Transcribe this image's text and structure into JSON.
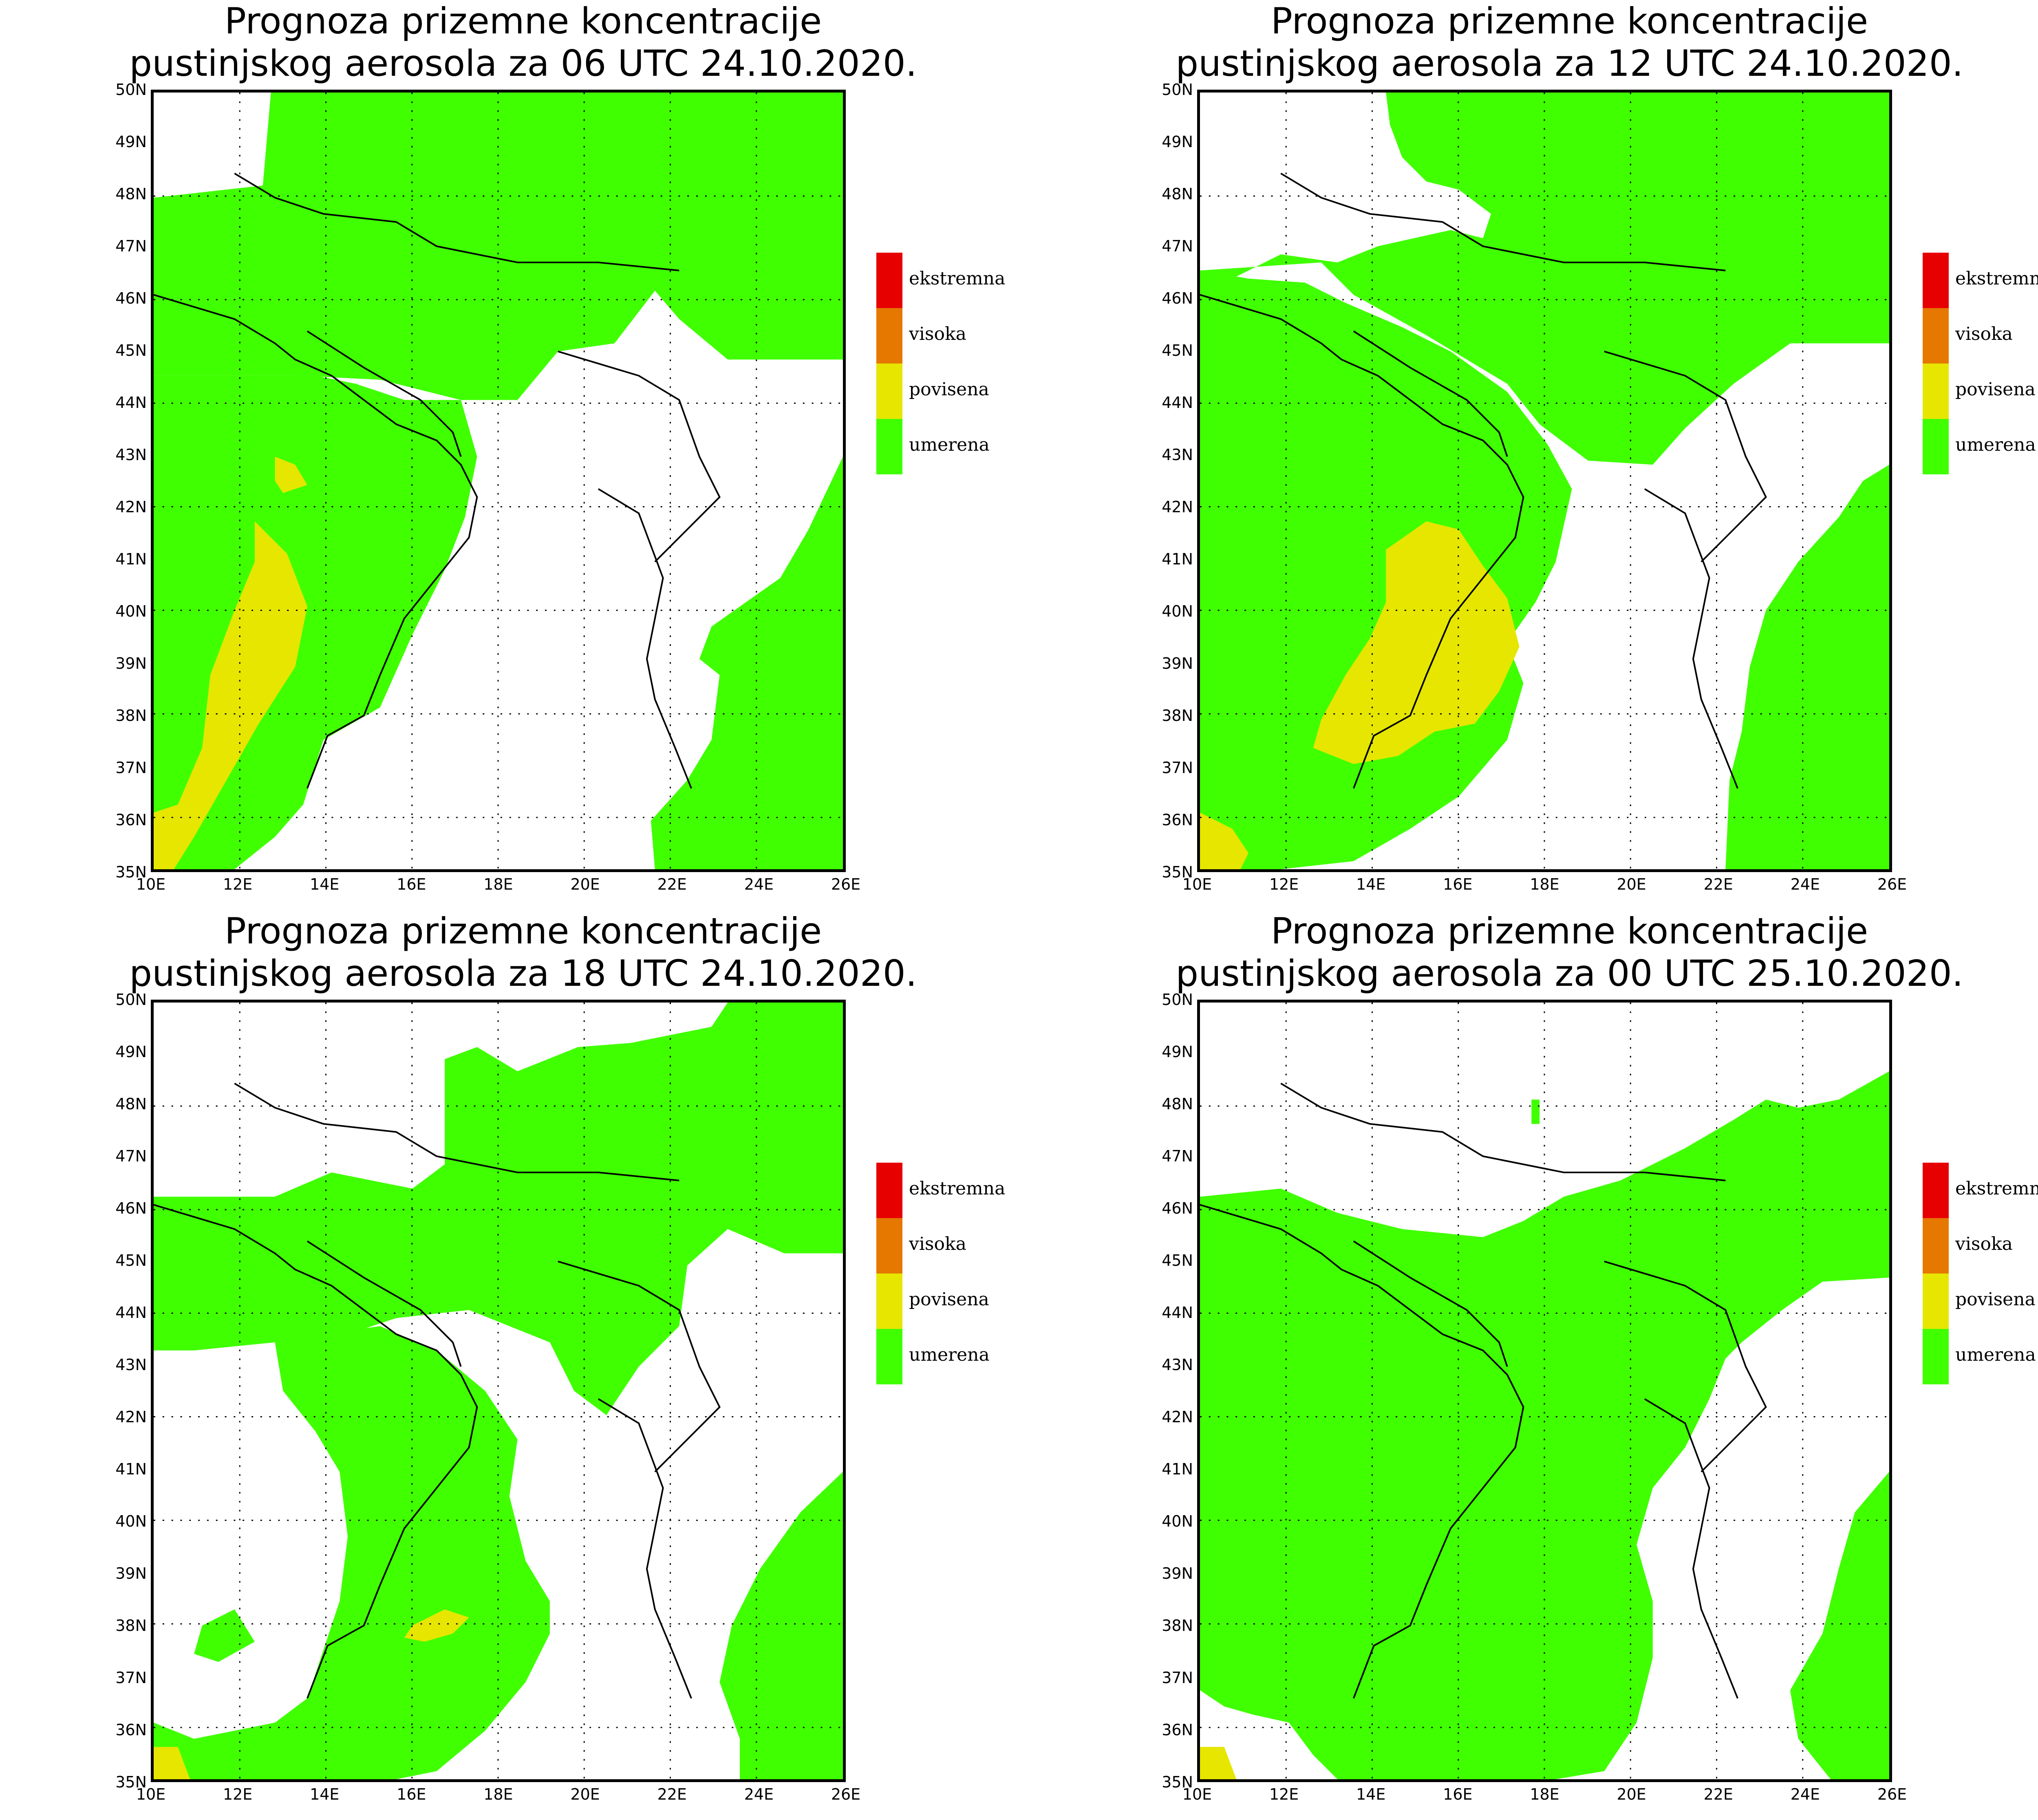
{
  "legend": {
    "items": [
      {
        "label": "ekstremna",
        "color": "#e60000"
      },
      {
        "label": "visoka",
        "color": "#e67800"
      },
      {
        "label": "povisena",
        "color": "#e6e600"
      },
      {
        "label": "umerena",
        "color": "#40ff00"
      }
    ]
  },
  "axes": {
    "lat_labels": [
      "50N",
      "49N",
      "48N",
      "47N",
      "46N",
      "45N",
      "44N",
      "43N",
      "42N",
      "41N",
      "40N",
      "39N",
      "38N",
      "37N",
      "36N",
      "35N"
    ],
    "lon_labels": [
      "10E",
      "12E",
      "14E",
      "16E",
      "18E",
      "20E",
      "22E",
      "24E",
      "26E"
    ]
  },
  "colors": {
    "umerena": "#40ff00",
    "povisena": "#e6e600",
    "background": "#ffffff",
    "border": "#000000"
  },
  "panels": [
    {
      "title_line1": "Prognoza prizemne koncentracije",
      "title_line2": "pustinjskog aerosola za 06 UTC 24.10.2020."
    },
    {
      "title_line1": "Prognoza prizemne koncentracije",
      "title_line2": "pustinjskog aerosola za 12 UTC 24.10.2020."
    },
    {
      "title_line1": "Prognoza prizemne koncentracije",
      "title_line2": "pustinjskog aerosola za 18 UTC 24.10.2020."
    },
    {
      "title_line1": "Prognoza prizemne koncentracije",
      "title_line2": "pustinjskog aerosola za 00 UTC 25.10.2020."
    }
  ]
}
